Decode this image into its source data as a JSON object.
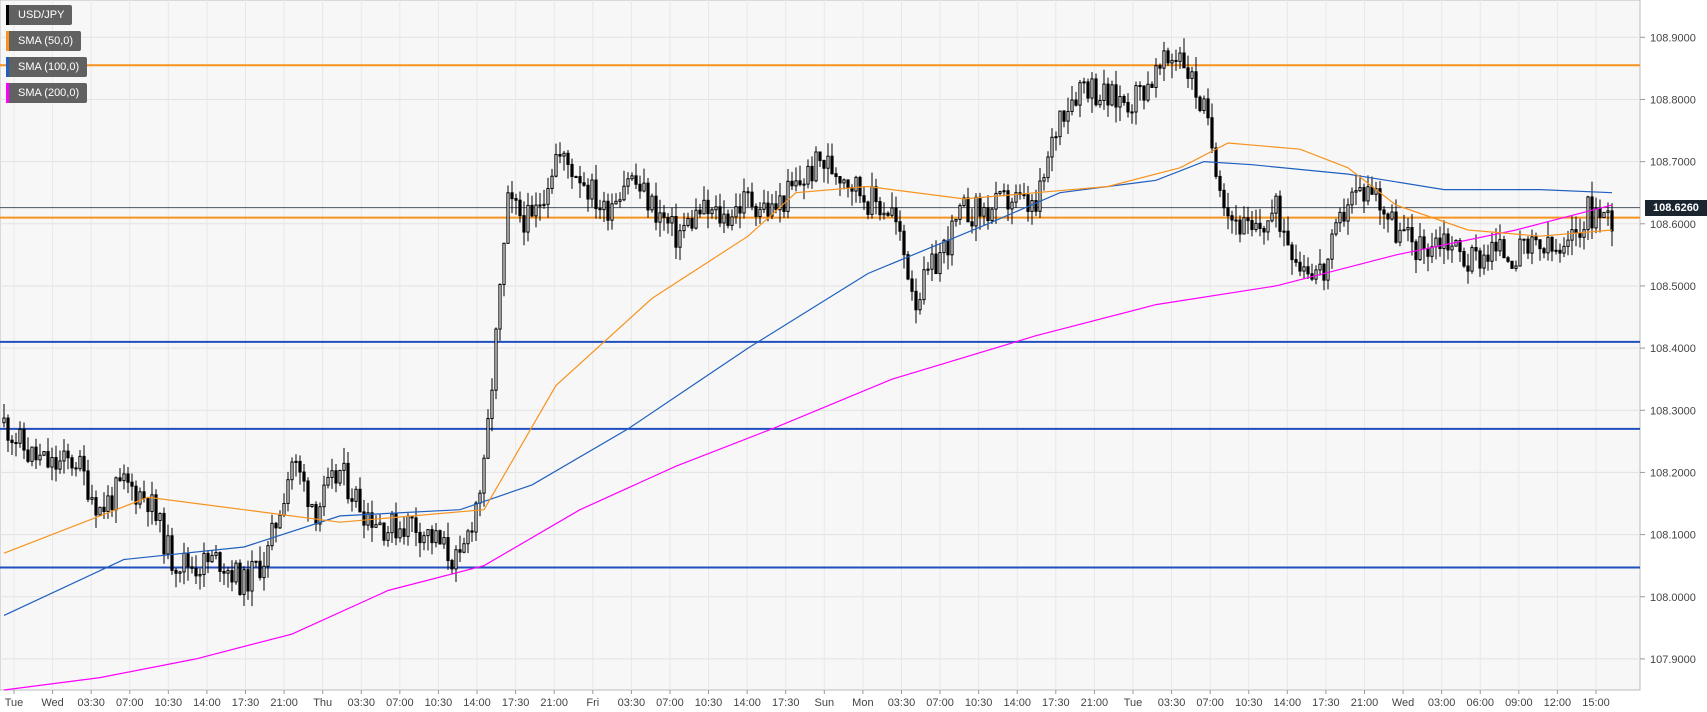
{
  "chart_data": {
    "type": "candlestick",
    "symbol": "USD/JPY",
    "ylim": [
      107.85,
      108.96
    ],
    "grid": true,
    "legend_position": "top-left",
    "current_price": "108.6260",
    "y_ticks": [
      "107.9000",
      "108.0000",
      "108.1000",
      "108.2000",
      "108.3000",
      "108.4000",
      "108.5000",
      "108.6000",
      "108.7000",
      "108.8000",
      "108.9000"
    ],
    "x_ticks": [
      "Tue",
      "Wed",
      "03:30",
      "07:00",
      "10:30",
      "14:00",
      "17:30",
      "21:00",
      "Thu",
      "03:30",
      "07:00",
      "10:30",
      "14:00",
      "17:30",
      "21:00",
      "Fri",
      "03:30",
      "07:00",
      "10:30",
      "14:00",
      "17:30",
      "Sun",
      "Mon",
      "03:30",
      "07:00",
      "10:30",
      "14:00",
      "17:30",
      "21:00",
      "Tue",
      "03:30",
      "07:00",
      "10:30",
      "14:00",
      "17:30",
      "21:00",
      "Wed",
      "03:00",
      "06:00",
      "09:00",
      "12:00",
      "15:00"
    ],
    "legend": [
      {
        "name": "USD/JPY",
        "color": "#000000"
      },
      {
        "name": "SMA (50,0)",
        "color": "#f7931e"
      },
      {
        "name": "SMA (100,0)",
        "color": "#1f5fbf"
      },
      {
        "name": "SMA (200,0)",
        "color": "#ff00ff"
      }
    ],
    "horizontal_levels": [
      {
        "value": 108.855,
        "color": "#f7931e"
      },
      {
        "value": 108.61,
        "color": "#f7931e"
      },
      {
        "value": 108.41,
        "color": "#1f4fbf"
      },
      {
        "value": 108.27,
        "color": "#1f4fbf"
      },
      {
        "value": 108.047,
        "color": "#1f4fbf"
      }
    ],
    "current_price_line": {
      "value": 108.626,
      "color": "#4a5560"
    },
    "price_path": [
      [
        0,
        108.28
      ],
      [
        1,
        108.23
      ],
      [
        2,
        108.21
      ],
      [
        3,
        108.22
      ],
      [
        4,
        108.14
      ],
      [
        5,
        108.18
      ],
      [
        6,
        108.16
      ],
      [
        7,
        108.06
      ],
      [
        8,
        108.05
      ],
      [
        9,
        108.06
      ],
      [
        10,
        108.02
      ],
      [
        11,
        108.07
      ],
      [
        12,
        108.22
      ],
      [
        13,
        108.14
      ],
      [
        14,
        108.2
      ],
      [
        15,
        108.14
      ],
      [
        16,
        108.11
      ],
      [
        17,
        108.12
      ],
      [
        18,
        108.09
      ],
      [
        19,
        108.05
      ],
      [
        20,
        108.2
      ],
      [
        21,
        108.63
      ],
      [
        22,
        108.6
      ],
      [
        23,
        108.71
      ],
      [
        24,
        108.68
      ],
      [
        25,
        108.62
      ],
      [
        26,
        108.68
      ],
      [
        27,
        108.63
      ],
      [
        28,
        108.58
      ],
      [
        29,
        108.62
      ],
      [
        30,
        108.61
      ],
      [
        31,
        108.64
      ],
      [
        32,
        108.62
      ],
      [
        33,
        108.66
      ],
      [
        34,
        108.7
      ],
      [
        35,
        108.68
      ],
      [
        36,
        108.64
      ],
      [
        37,
        108.62
      ],
      [
        38,
        108.48
      ],
      [
        39,
        108.55
      ],
      [
        40,
        108.62
      ],
      [
        41,
        108.62
      ],
      [
        42,
        108.64
      ],
      [
        43,
        108.62
      ],
      [
        44,
        108.78
      ],
      [
        45,
        108.83
      ],
      [
        46,
        108.8
      ],
      [
        47,
        108.8
      ],
      [
        48,
        108.84
      ],
      [
        49,
        108.88
      ],
      [
        50,
        108.78
      ],
      [
        51,
        108.62
      ],
      [
        52,
        108.58
      ],
      [
        53,
        108.62
      ],
      [
        54,
        108.54
      ],
      [
        55,
        108.52
      ],
      [
        56,
        108.64
      ],
      [
        57,
        108.66
      ],
      [
        58,
        108.59
      ],
      [
        59,
        108.56
      ],
      [
        60,
        108.58
      ],
      [
        61,
        108.54
      ],
      [
        62,
        108.56
      ],
      [
        63,
        108.55
      ],
      [
        64,
        108.56
      ],
      [
        65,
        108.55
      ],
      [
        66,
        108.62
      ],
      [
        67,
        108.61
      ]
    ],
    "sma_50": [
      [
        0,
        108.07
      ],
      [
        6,
        108.16
      ],
      [
        10,
        108.14
      ],
      [
        14,
        108.12
      ],
      [
        20,
        108.14
      ],
      [
        23,
        108.34
      ],
      [
        27,
        108.48
      ],
      [
        31,
        108.58
      ],
      [
        33,
        108.65
      ],
      [
        36,
        108.66
      ],
      [
        40,
        108.64
      ],
      [
        43,
        108.65
      ],
      [
        46,
        108.66
      ],
      [
        49,
        108.69
      ],
      [
        51,
        108.73
      ],
      [
        54,
        108.72
      ],
      [
        56,
        108.69
      ],
      [
        58,
        108.63
      ],
      [
        61,
        108.59
      ],
      [
        64,
        108.58
      ],
      [
        67,
        108.59
      ]
    ],
    "sma_100": [
      [
        0,
        107.97
      ],
      [
        5,
        108.06
      ],
      [
        10,
        108.08
      ],
      [
        14,
        108.13
      ],
      [
        19,
        108.14
      ],
      [
        22,
        108.18
      ],
      [
        26,
        108.27
      ],
      [
        31,
        108.4
      ],
      [
        36,
        108.52
      ],
      [
        41,
        108.6
      ],
      [
        44,
        108.65
      ],
      [
        48,
        108.67
      ],
      [
        50,
        108.7
      ],
      [
        52,
        108.695
      ],
      [
        56,
        108.68
      ],
      [
        60,
        108.655
      ],
      [
        64,
        108.655
      ],
      [
        67,
        108.65
      ]
    ],
    "sma_200": [
      [
        0,
        107.85
      ],
      [
        4,
        107.87
      ],
      [
        8,
        107.9
      ],
      [
        12,
        107.94
      ],
      [
        16,
        108.01
      ],
      [
        20,
        108.05
      ],
      [
        24,
        108.14
      ],
      [
        28,
        108.21
      ],
      [
        32,
        108.27
      ],
      [
        37,
        108.35
      ],
      [
        43,
        108.42
      ],
      [
        48,
        108.47
      ],
      [
        53,
        108.5
      ],
      [
        58,
        108.55
      ],
      [
        63,
        108.59
      ],
      [
        67,
        108.63
      ]
    ]
  }
}
